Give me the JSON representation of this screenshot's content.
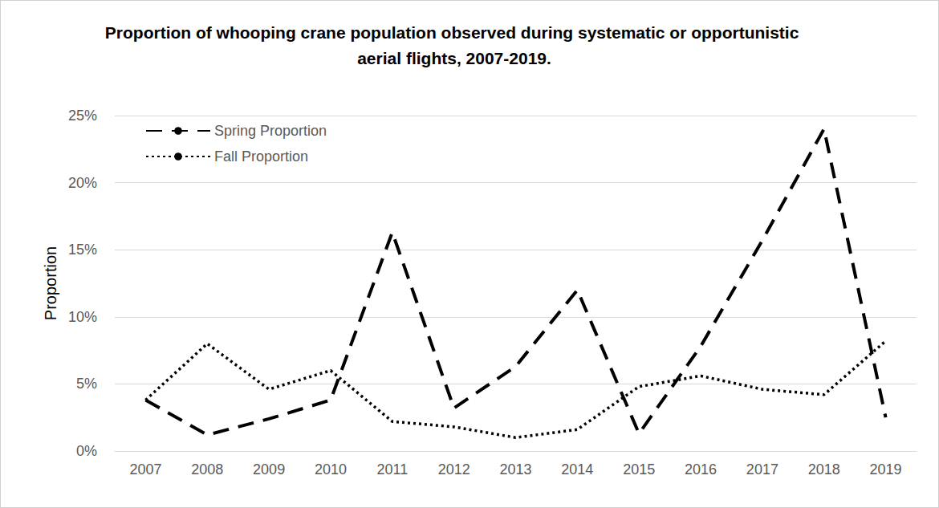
{
  "chart_data": {
    "type": "line",
    "title": "Proportion of whooping crane population observed during systematic or opportunistic aerial flights, 2007-2019.",
    "y_label": "Proportion",
    "categories": [
      "2007",
      "2008",
      "2009",
      "2010",
      "2011",
      "2012",
      "2013",
      "2014",
      "2015",
      "2016",
      "2017",
      "2018",
      "2019"
    ],
    "series": [
      {
        "name": "Spring Proportion",
        "color": "#000000",
        "line_style": "dashed",
        "marker": "none",
        "values": [
          3.8,
          1.2,
          2.4,
          3.8,
          16.3,
          3.2,
          6.3,
          12.0,
          1.3,
          7.8,
          15.7,
          24.0,
          2.5
        ]
      },
      {
        "name": "Fall Proportion",
        "color": "#000000",
        "line_style": "dotted",
        "marker": "none",
        "values": [
          3.8,
          8.0,
          4.6,
          6.0,
          2.2,
          1.8,
          1.0,
          1.6,
          4.8,
          5.6,
          4.6,
          4.2,
          8.2
        ]
      }
    ],
    "ylim": [
      0,
      25
    ],
    "yticks": [
      {
        "value": 0,
        "label": "0%"
      },
      {
        "value": 5,
        "label": "5%"
      },
      {
        "value": 10,
        "label": "10%"
      },
      {
        "value": 15,
        "label": "15%"
      },
      {
        "value": 20,
        "label": "20%"
      },
      {
        "value": 25,
        "label": "25%"
      }
    ],
    "grid": true,
    "legend": "upper left"
  }
}
